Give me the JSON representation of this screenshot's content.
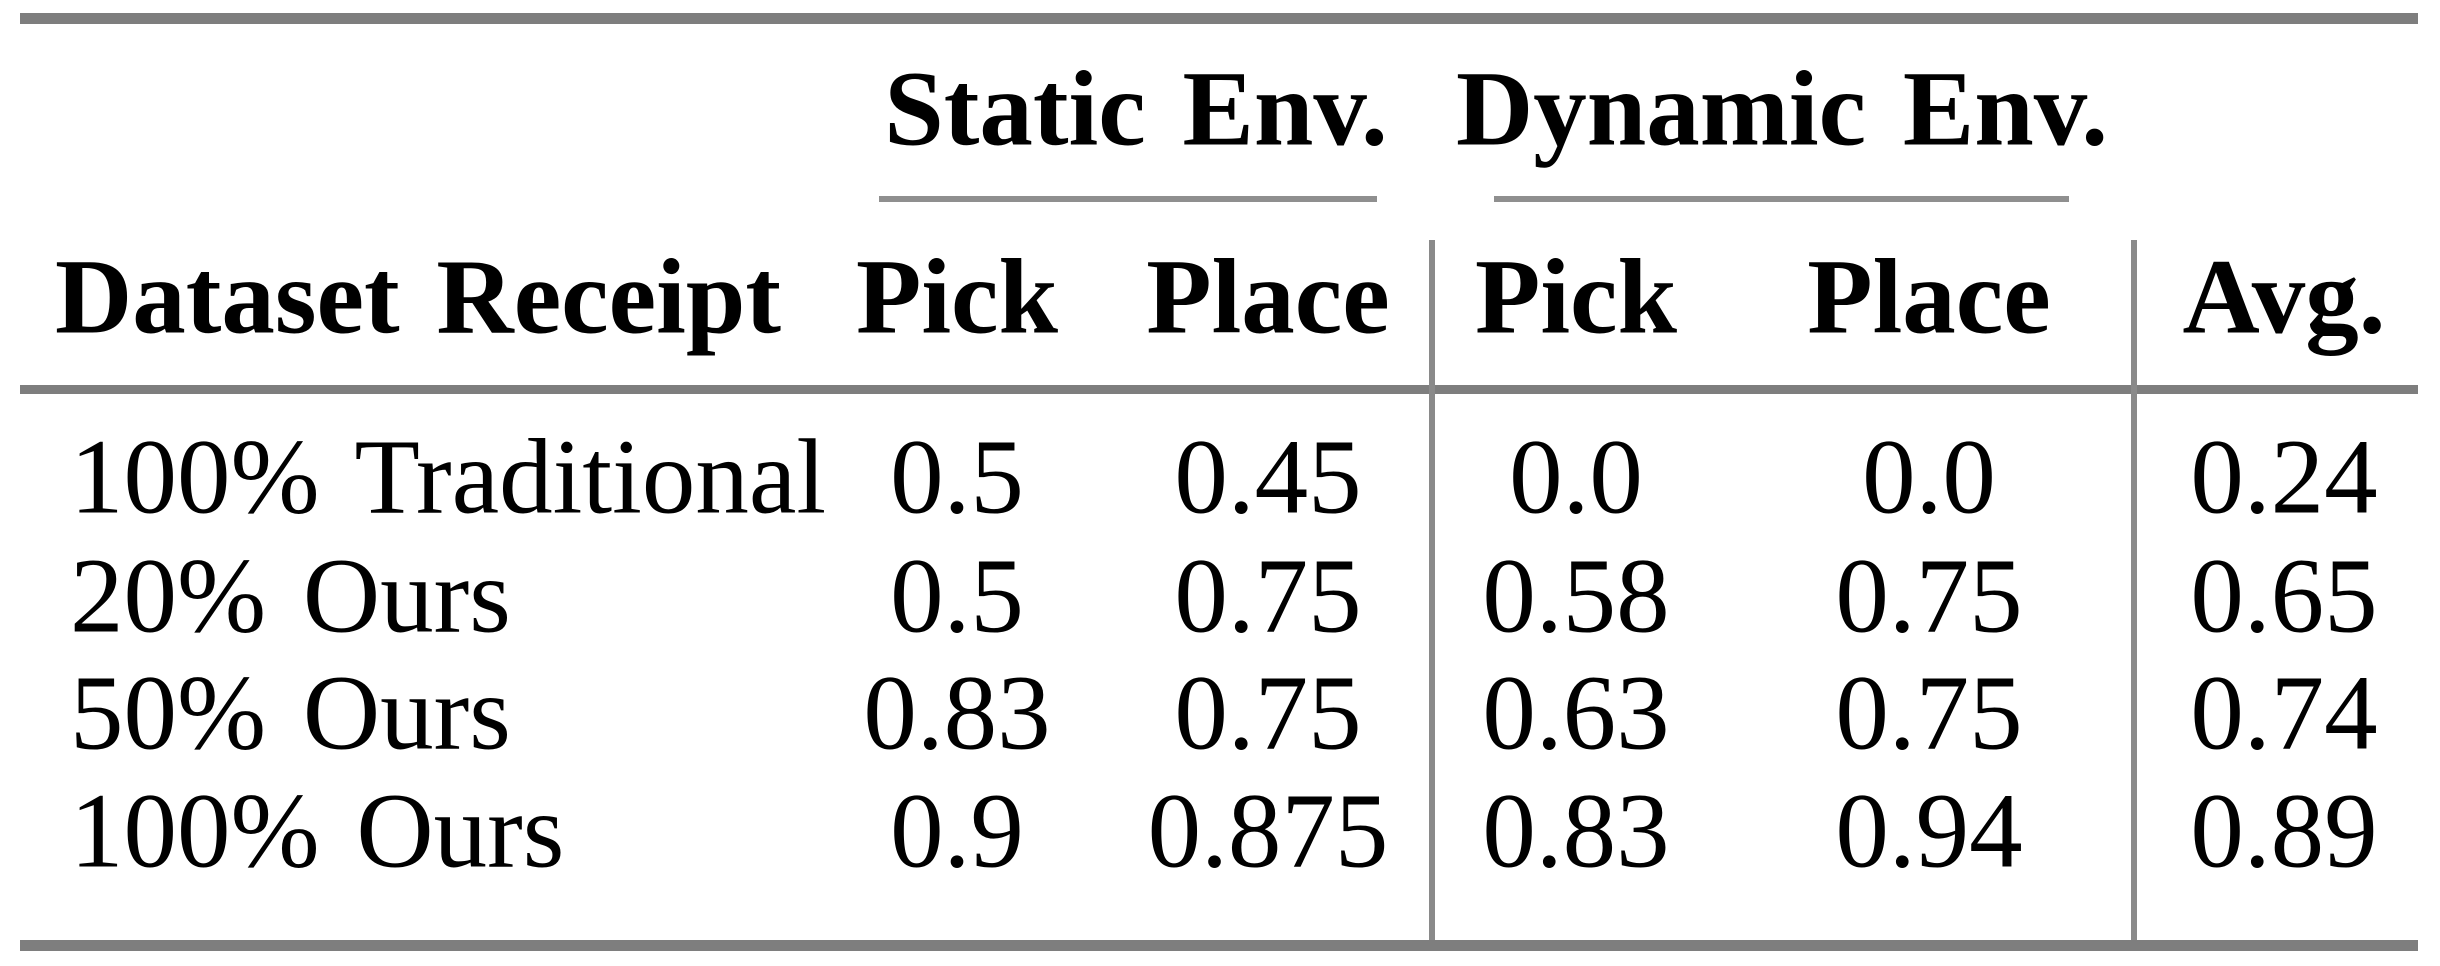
{
  "table": {
    "corner_header": "Dataset Receipt",
    "groups": [
      {
        "label": "Static Env.",
        "columns": [
          "Pick",
          "Place"
        ]
      },
      {
        "label": "Dynamic Env.",
        "columns": [
          "Pick",
          "Place"
        ]
      }
    ],
    "avg_header": "Avg.",
    "rows": [
      {
        "label": "100% Traditional",
        "values": [
          "0.5",
          "0.45",
          "0.0",
          "0.0",
          "0.24"
        ]
      },
      {
        "label": "20% Ours",
        "values": [
          "0.5",
          "0.75",
          "0.58",
          "0.75",
          "0.65"
        ]
      },
      {
        "label": "50% Ours",
        "values": [
          "0.83",
          "0.75",
          "0.63",
          "0.75",
          "0.74"
        ]
      },
      {
        "label": "100% Ours",
        "values": [
          "0.9",
          "0.875",
          "0.83",
          "0.94",
          "0.89"
        ]
      }
    ],
    "colors": {
      "text": "#000000",
      "rule_thick": "#7e7e7e",
      "rule_thin": "#8f8f8f",
      "background": "#ffffff"
    }
  },
  "chart_data": {
    "type": "table",
    "columns": [
      "Dataset Receipt",
      "Static Env. Pick",
      "Static Env. Place",
      "Dynamic Env. Pick",
      "Dynamic Env. Place",
      "Avg."
    ],
    "rows": [
      [
        "100% Traditional",
        0.5,
        0.45,
        0.0,
        0.0,
        0.24
      ],
      [
        "20% Ours",
        0.5,
        0.75,
        0.58,
        0.75,
        0.65
      ],
      [
        "50% Ours",
        0.83,
        0.75,
        0.63,
        0.75,
        0.74
      ],
      [
        "100% Ours",
        0.9,
        0.875,
        0.83,
        0.94,
        0.89
      ]
    ]
  }
}
